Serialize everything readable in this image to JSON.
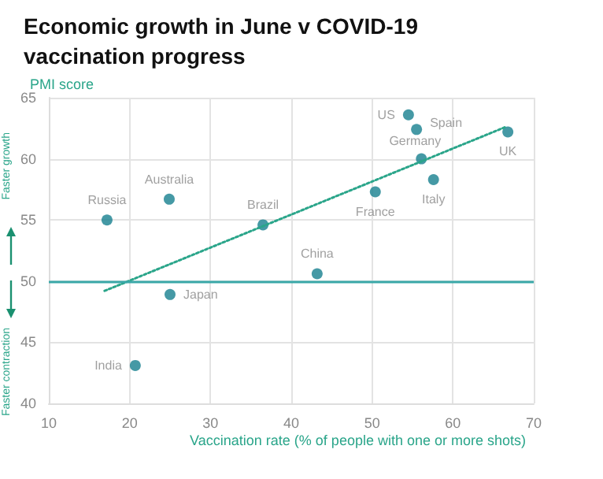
{
  "chart_data": {
    "type": "scatter",
    "title": "Economic growth in June v COVID-19 vaccination progress",
    "xlabel": "Vaccination rate (% of people with one or more shots)",
    "ylabel": "PMI score",
    "annotations": [
      "Faster growth",
      "Faster contraction"
    ],
    "xlim": [
      10,
      70
    ],
    "xticks": [
      10,
      20,
      30,
      40,
      50,
      60,
      70
    ],
    "ylim": [
      40,
      65
    ],
    "yticks": [
      40,
      45,
      50,
      55,
      60,
      65
    ],
    "grid": true,
    "series": [
      {
        "color": "#17808f",
        "marker": "circle",
        "x": [
          17.2,
          24.9,
          36.5,
          25.0,
          20.7,
          43.2,
          54.5,
          55.5,
          56.1,
          66.8,
          57.6,
          50.4
        ],
        "values": [
          55.0,
          56.7,
          54.6,
          48.9,
          43.1,
          50.6,
          63.6,
          62.4,
          60.0,
          62.2,
          58.3,
          57.3
        ],
        "value_labels": [
          "Russia",
          "Australia",
          "Brazil",
          "Japan",
          "India",
          "China",
          "US",
          "Spain",
          "Germany",
          "UK",
          "Italy",
          "France"
        ]
      },
      {
        "type": "line",
        "color": "#2aa58a",
        "marker": "none",
        "line_style": "dotted",
        "x": [
          16.9,
          66.5
        ],
        "values": [
          49.2,
          62.6
        ]
      }
    ],
    "ref_lines": [
      {
        "axis": "y",
        "value": 50,
        "color": "#3aa8a8",
        "line_style": "solid"
      }
    ]
  }
}
